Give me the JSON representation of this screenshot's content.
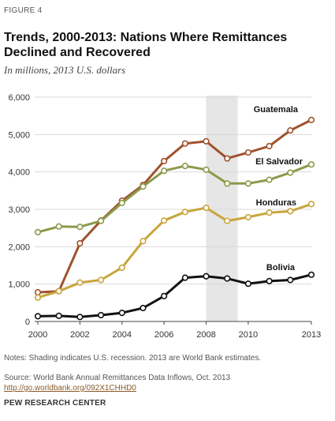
{
  "figure_label": "FIGURE 4",
  "title": "Trends, 2000-2013: Nations Where Remittances Declined and Recovered",
  "subtitle": "In millions, 2013 U.S. dollars",
  "note": "Notes: Shading indicates U.S. recession. 2013 are World Bank estimates.",
  "source": "Source: World Bank Annual Remittances Data Inflows, Oct. 2013",
  "source_url": "http://go.worldbank.org/092X1CHHD0",
  "credit": "PEW RESEARCH CENTER",
  "chart_data": {
    "type": "line",
    "x": [
      2000,
      2001,
      2002,
      2003,
      2004,
      2005,
      2006,
      2007,
      2008,
      2009,
      2010,
      2011,
      2012,
      2013
    ],
    "xlim": [
      2000,
      2013
    ],
    "ylim": [
      0,
      6000
    ],
    "xticks": [
      2000,
      2002,
      2004,
      2006,
      2008,
      2010,
      2013
    ],
    "xtick_labels": [
      "2000",
      "2002",
      "2004",
      "2006",
      "2008",
      "2010",
      "2013"
    ],
    "yticks": [
      0,
      1000,
      2000,
      3000,
      4000,
      5000,
      6000
    ],
    "ytick_labels": [
      "0",
      "1,000",
      "2,000",
      "3,000",
      "4,000",
      "5,000",
      "6,000"
    ],
    "recession_shading": [
      2008,
      2009.5
    ],
    "grid": "horizontal",
    "series": [
      {
        "name": "Guatemala",
        "color": "#a0522d",
        "values": [
          780,
          810,
          2090,
          2700,
          3230,
          3650,
          4290,
          4760,
          4820,
          4360,
          4520,
          4690,
          5110,
          5390
        ]
      },
      {
        "name": "El Salvador",
        "color": "#8a9a4a",
        "values": [
          2390,
          2540,
          2530,
          2690,
          3170,
          3610,
          4030,
          4160,
          4060,
          3690,
          3690,
          3790,
          3980,
          4200
        ]
      },
      {
        "name": "Honduras",
        "color": "#c8a53c",
        "values": [
          640,
          810,
          1040,
          1110,
          1440,
          2150,
          2700,
          2930,
          3040,
          2690,
          2790,
          2910,
          2950,
          3140
        ]
      },
      {
        "name": "Bolivia",
        "color": "#111111",
        "values": [
          140,
          150,
          120,
          170,
          230,
          360,
          680,
          1170,
          1210,
          1150,
          1010,
          1080,
          1110,
          1250
        ]
      }
    ]
  }
}
